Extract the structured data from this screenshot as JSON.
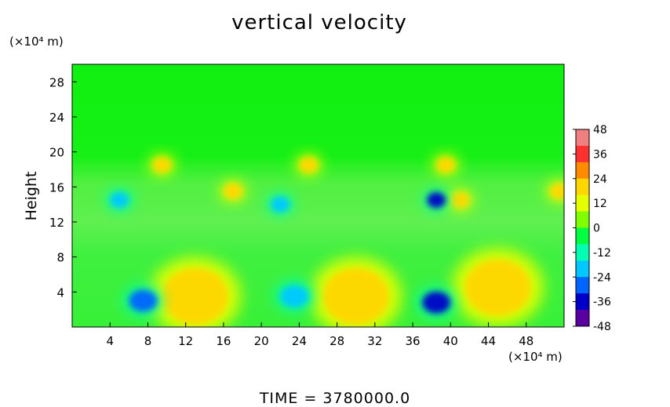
{
  "title": "vertical velocity",
  "y_unit": "(×10⁴ m)",
  "x_unit": "(×10⁴ m)",
  "y_label": "Height",
  "time_label": "TIME  =  3780000.0",
  "chart_data": {
    "type": "heatmap",
    "title": "vertical velocity",
    "xlabel": "",
    "ylabel": "Height",
    "x_unit": "×10⁴ m",
    "y_unit": "×10⁴ m",
    "xlim": [
      0,
      52
    ],
    "ylim": [
      0,
      30
    ],
    "x_ticks": [
      4,
      8,
      12,
      16,
      20,
      24,
      28,
      32,
      36,
      40,
      44,
      48
    ],
    "y_ticks": [
      4,
      8,
      12,
      16,
      20,
      24,
      28
    ],
    "colorbar": {
      "min": -48,
      "max": 48,
      "ticks": [
        48,
        36,
        24,
        12,
        0,
        -12,
        -24,
        -36,
        -48
      ],
      "colors": [
        "#f08080",
        "#ff3030",
        "#ff8c00",
        "#ffd700",
        "#e6ff00",
        "#7fff00",
        "#00ff40",
        "#00ffb0",
        "#00c8ff",
        "#0064ff",
        "#0000c8",
        "#5a00a0"
      ]
    },
    "features": [
      {
        "type": "updraft",
        "x": 13,
        "y": 3.5,
        "value": 18
      },
      {
        "type": "updraft",
        "x": 30,
        "y": 3.5,
        "value": 20
      },
      {
        "type": "updraft",
        "x": 45,
        "y": 4.5,
        "value": 18
      },
      {
        "type": "downdraft",
        "x": 7.5,
        "y": 3,
        "value": -30
      },
      {
        "type": "downdraft",
        "x": 23.5,
        "y": 3.5,
        "value": -20
      },
      {
        "type": "downdraft",
        "x": 38.5,
        "y": 2.8,
        "value": -32
      },
      {
        "type": "updraft",
        "x": 9.5,
        "y": 18.5,
        "value": 22
      },
      {
        "type": "updraft",
        "x": 25,
        "y": 18.5,
        "value": 22
      },
      {
        "type": "updraft",
        "x": 39.5,
        "y": 18.5,
        "value": 24
      },
      {
        "type": "updraft",
        "x": 17,
        "y": 15.5,
        "value": 20
      },
      {
        "type": "updraft",
        "x": 41,
        "y": 14.5,
        "value": 22
      },
      {
        "type": "updraft",
        "x": 51.5,
        "y": 15.5,
        "value": 20
      },
      {
        "type": "downdraft",
        "x": 38.5,
        "y": 14.5,
        "value": -32
      },
      {
        "type": "downdraft",
        "x": 22,
        "y": 14,
        "value": -20
      },
      {
        "type": "downdraft",
        "x": 5,
        "y": 14.5,
        "value": -18
      }
    ],
    "background_value": 4
  }
}
